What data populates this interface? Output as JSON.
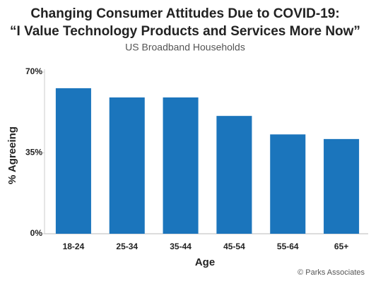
{
  "chart_data": {
    "type": "bar",
    "title": [
      "Changing Consumer Attitudes Due to COVID-19:",
      "“I Value Technology Products and Services More Now”"
    ],
    "subtitle": "US Broadband Households",
    "x_label": "Age",
    "y_label": "% Agreeing",
    "source": "© Parks Associates",
    "categories": [
      "18-24",
      "25-34",
      "35-44",
      "45-54",
      "55-64",
      "65+"
    ],
    "values": [
      63,
      59,
      59,
      51,
      43,
      41
    ],
    "color": "#1b75bc",
    "ylim": [
      0,
      70
    ],
    "yticks": [
      {
        "value": 0,
        "label": "0%"
      },
      {
        "value": 35,
        "label": "35%"
      },
      {
        "value": 70,
        "label": "70%"
      }
    ],
    "grid": false
  }
}
